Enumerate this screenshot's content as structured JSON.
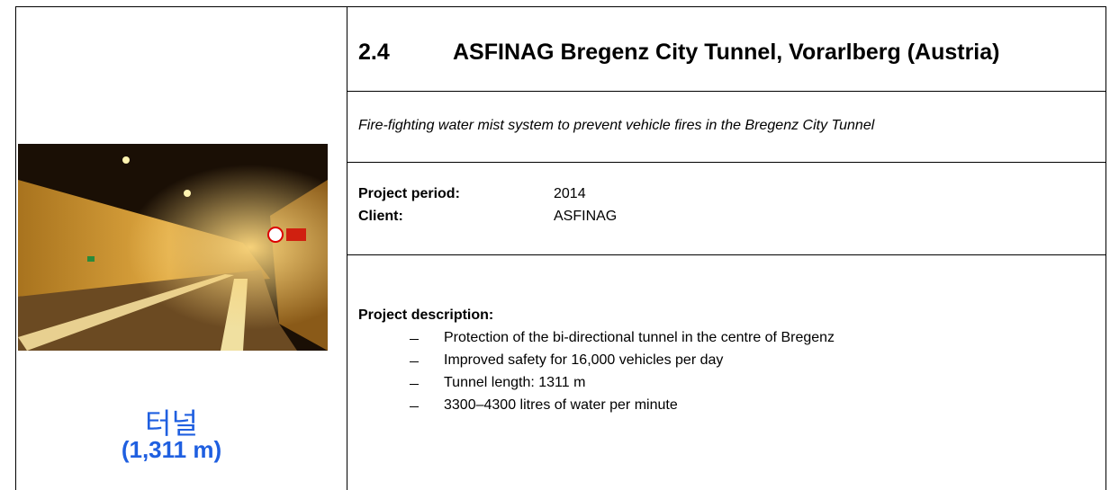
{
  "header": {
    "section": "2.4",
    "title": "ASFINAG Bregenz City Tunnel, Vorarlberg (Austria)"
  },
  "subtitle": "Fire-fighting water mist system to prevent vehicle fires in the Bregenz City Tunnel",
  "details": [
    {
      "label": "Project period:",
      "value": "2014"
    },
    {
      "label": "Client:",
      "value": "ASFINAG"
    }
  ],
  "description": {
    "heading": "Project description:",
    "items": [
      "Protection of the bi-directional tunnel in the centre of Bregenz",
      "Improved safety for 16,000 vehicles per day",
      "Tunnel length: 1311 m",
      "3300–4300 litres of water per minute"
    ]
  },
  "caption": {
    "name": "터널",
    "length": "(1,311 m)"
  }
}
